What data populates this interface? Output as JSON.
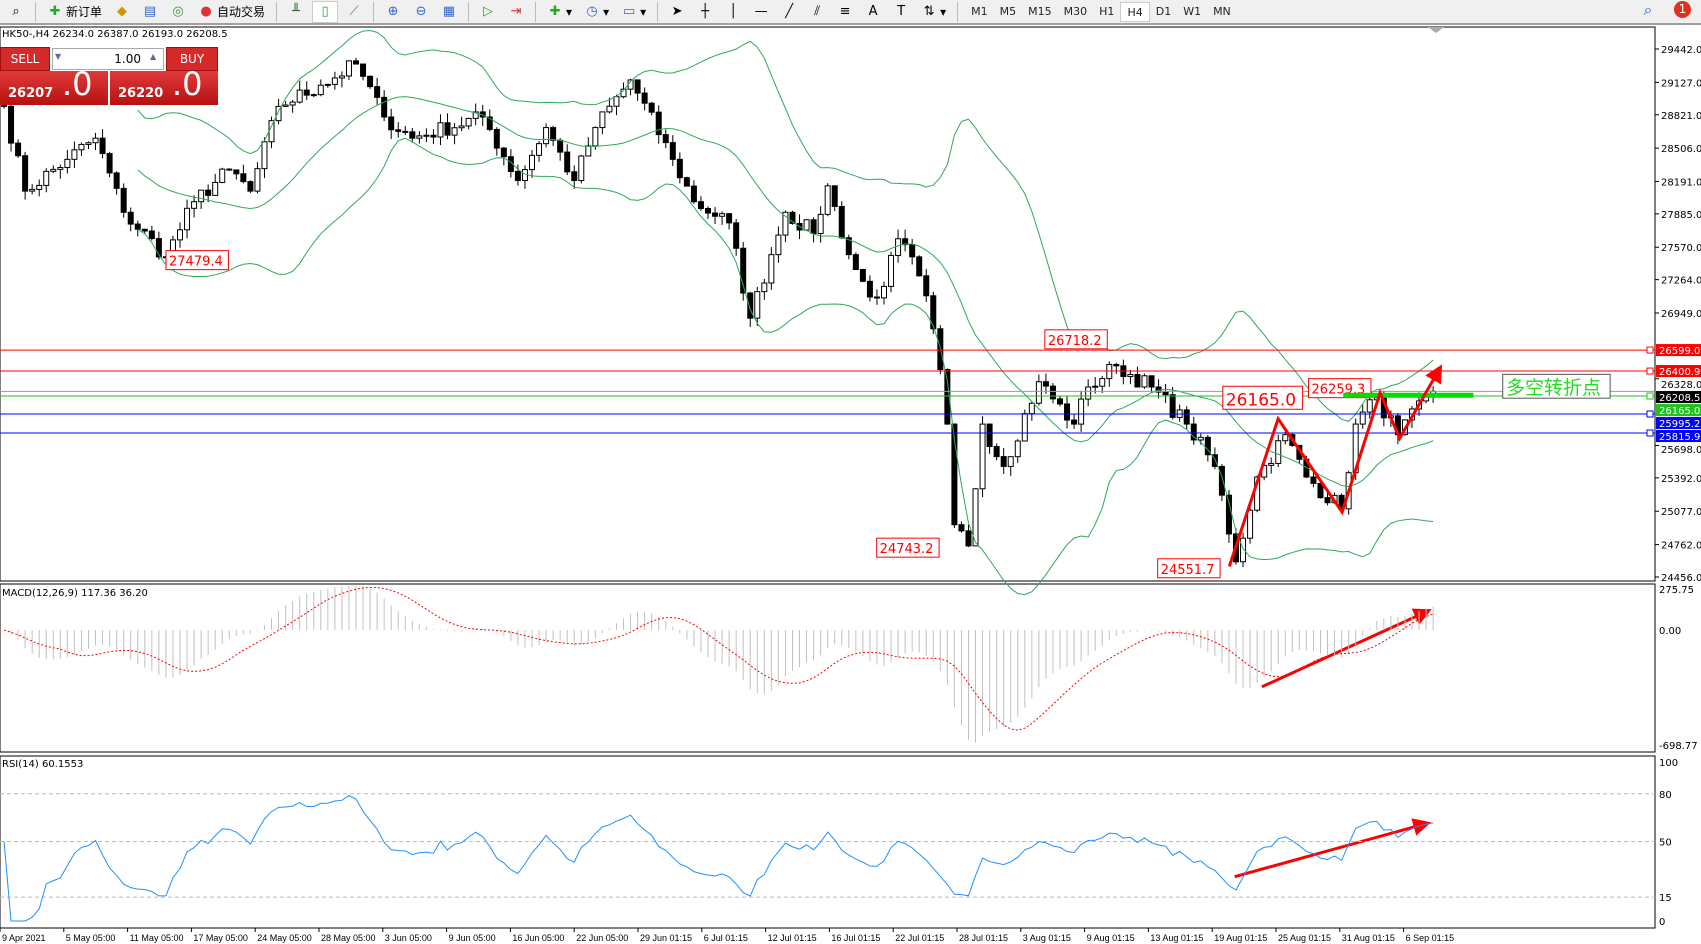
{
  "toolbar": {
    "new_order": "新订单",
    "auto_trading": "自动交易",
    "timeframes": [
      "M1",
      "M5",
      "M15",
      "M30",
      "H1",
      "H4",
      "D1",
      "W1",
      "MN"
    ],
    "active_timeframe": "H4",
    "notifications": "1"
  },
  "chart": {
    "title": "HK50-,H4  26234.0 26387.0 26193.0 26208.5"
  },
  "trade_panel": {
    "sell": "SELL",
    "buy": "BUY",
    "lot": "1.00",
    "sell_small": "26207",
    "sell_big": ".0",
    "buy_small": "26220",
    "buy_big": ".0"
  },
  "colors": {
    "bull": "#ffffff",
    "bear": "#000000",
    "bands": "#2fa85a",
    "annot": "#ff0000",
    "rsi": "#1e90ff",
    "macd_hist": "#c0c0c0",
    "macd_signal": "#ff0000"
  },
  "chart_data": {
    "type": "candlestick",
    "symbol": "HK50-",
    "timeframe": "H4",
    "price_ticks": [
      29442.0,
      29127.0,
      28821.0,
      28506.0,
      28191.0,
      27885.0,
      27570.0,
      27264.0,
      26949.0,
      26328.0,
      25698.0,
      25392.0,
      25077.0,
      24762.0,
      24456.0
    ],
    "ylim": [
      24456.0,
      29442.0
    ],
    "date_ticks": [
      "9 Apr 2021",
      "5 May 05:00",
      "11 May 05:00",
      "17 May 05:00",
      "24 May 05:00",
      "28 May 05:00",
      "3 Jun 05:00",
      "9 Jun 05:00",
      "16 Jun 05:00",
      "22 Jun 05:00",
      "29 Jun 01:15",
      "6 Jul 01:15",
      "12 Jul 01:15",
      "16 Jul 01:15",
      "22 Jul 01:15",
      "28 Jul 01:15",
      "3 Aug 01:15",
      "9 Aug 01:15",
      "13 Aug 01:15",
      "19 Aug 01:15",
      "25 Aug 01:15",
      "31 Aug 01:15",
      "6 Sep 01:15"
    ],
    "swing_path": [
      [
        0,
        28900
      ],
      [
        3,
        28100
      ],
      [
        9,
        28400
      ],
      [
        13,
        28600
      ],
      [
        17,
        27900
      ],
      [
        23,
        27480
      ],
      [
        27,
        28000
      ],
      [
        32,
        28300
      ],
      [
        35,
        28100
      ],
      [
        39,
        28900
      ],
      [
        45,
        29100
      ],
      [
        50,
        29300
      ],
      [
        54,
        28800
      ],
      [
        58,
        28600
      ],
      [
        68,
        28800
      ],
      [
        73,
        28200
      ],
      [
        77,
        28700
      ],
      [
        81,
        28200
      ],
      [
        84,
        28700
      ],
      [
        89,
        29150
      ],
      [
        95,
        28400
      ],
      [
        98,
        28000
      ],
      [
        103,
        27800
      ],
      [
        106,
        26900
      ],
      [
        109,
        27500
      ],
      [
        111,
        27900
      ],
      [
        115,
        27700
      ],
      [
        117,
        28150
      ],
      [
        120,
        27500
      ],
      [
        123,
        27100
      ],
      [
        125,
        27200
      ],
      [
        127,
        27650
      ],
      [
        130,
        27300
      ],
      [
        132,
        26800
      ],
      [
        134,
        25900
      ],
      [
        135,
        24950
      ],
      [
        137,
        24750
      ],
      [
        139,
        25900
      ],
      [
        142,
        25500
      ],
      [
        147,
        26300
      ],
      [
        152,
        25900
      ],
      [
        154,
        26250
      ],
      [
        158,
        26450
      ],
      [
        163,
        26250
      ],
      [
        168,
        25900
      ],
      [
        172,
        25500
      ],
      [
        175,
        24600
      ],
      [
        178,
        25400
      ],
      [
        182,
        25800
      ],
      [
        185,
        25400
      ],
      [
        190,
        25100
      ],
      [
        192,
        25900
      ],
      [
        195,
        26150
      ],
      [
        198,
        25800
      ],
      [
        203,
        26210
      ]
    ],
    "bollinger": {
      "period": 20,
      "deviations": 2
    },
    "horizontal_lines": [
      {
        "price": "26599.0",
        "color": "#ff0000"
      },
      {
        "price": "26400.9",
        "color": "#ff0000"
      },
      {
        "price": "26208.5",
        "color": "#000000"
      },
      {
        "price": "26165.0",
        "color": "#22c022"
      },
      {
        "price": "25995.2",
        "color": "#0000ff"
      },
      {
        "price": "25815.9",
        "color": "#0000ff"
      }
    ],
    "annotations": [
      {
        "text": "27479.4"
      },
      {
        "text": "24743.2"
      },
      {
        "text": "26718.2"
      },
      {
        "text": "26259.3"
      },
      {
        "text": "26165.0"
      },
      {
        "text": "24551.7"
      }
    ],
    "note_text": "多空转折点",
    "macd": {
      "label": "MACD(12,26,9) 117.36 36.20",
      "ticks": [
        "275.75",
        "0.00",
        "-698.77"
      ],
      "ylim": [
        -698.77,
        275.75
      ]
    },
    "rsi": {
      "label": "RSI(14) 60.1553",
      "ticks": [
        "100",
        "80",
        "50",
        "15",
        "0"
      ],
      "levels": [
        80,
        50,
        15
      ]
    }
  }
}
